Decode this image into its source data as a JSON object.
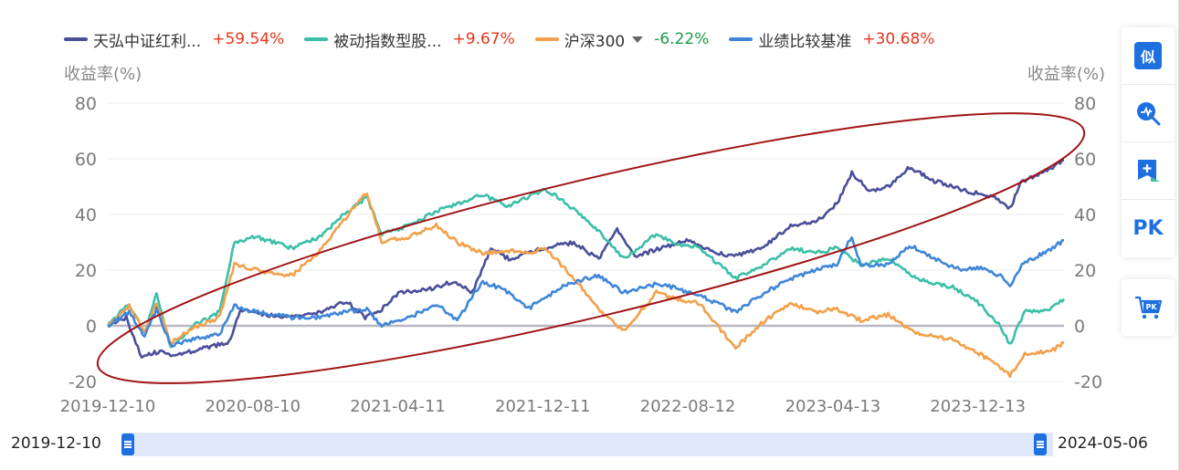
{
  "legend": [
    {
      "name": "天弘中证红利...",
      "change": "+59.54%",
      "color": "#4a4f9a",
      "dir": "up",
      "dropdown": false
    },
    {
      "name": "被动指数型股...",
      "change": "+9.67%",
      "color": "#3bbfa6",
      "dir": "up",
      "dropdown": false
    },
    {
      "name": "沪深300",
      "change": "-6.22%",
      "color": "#f2a04a",
      "dir": "down",
      "dropdown": true
    },
    {
      "name": "业绩比较基准",
      "change": "+30.68%",
      "color": "#3f86d8",
      "dir": "up",
      "dropdown": false
    }
  ],
  "sidebar": {
    "similar_label": "似",
    "pk_label": "PK",
    "cart_label": "PK",
    "icons": [
      "similar-icon",
      "trend-search-icon",
      "add-compare-icon",
      "pk-icon",
      "pk-cart-icon"
    ]
  },
  "slider": {
    "start": "2019-12-10",
    "end": "2024-05-06"
  },
  "annotation": {
    "type": "ellipse",
    "color": "#a01414"
  },
  "chart_data": {
    "type": "line",
    "ylabel_left": "收益率(%)",
    "ylabel_right": "收益率(%)",
    "yticks": [
      80,
      60,
      40,
      20,
      0,
      -20
    ],
    "ylim": [
      -20,
      80
    ],
    "xlim": [
      "2019-12-10",
      "2024-05-06"
    ],
    "xticks": [
      "2019-12-10",
      "2020-08-10",
      "2021-04-11",
      "2021-12-11",
      "2022-08-12",
      "2023-04-13",
      "2023-12-13"
    ],
    "zero_line": true,
    "grid": "horizontal",
    "series": [
      {
        "name": "天弘中证红利...",
        "color": "#4a4f9a",
        "points": [
          [
            "2019-12-10",
            0
          ],
          [
            "2020-01-10",
            3
          ],
          [
            "2020-02-05",
            -11
          ],
          [
            "2020-03-10",
            -9
          ],
          [
            "2020-03-25",
            -11
          ],
          [
            "2020-05-01",
            -9
          ],
          [
            "2020-07-01",
            -6
          ],
          [
            "2020-07-20",
            6
          ],
          [
            "2020-09-01",
            4
          ],
          [
            "2020-10-15",
            3
          ],
          [
            "2020-12-01",
            5
          ],
          [
            "2021-01-15",
            9
          ],
          [
            "2021-02-15",
            3
          ],
          [
            "2021-03-15",
            6
          ],
          [
            "2021-04-15",
            12
          ],
          [
            "2021-06-01",
            13
          ],
          [
            "2021-07-15",
            16
          ],
          [
            "2021-08-15",
            12
          ],
          [
            "2021-09-15",
            28
          ],
          [
            "2021-10-15",
            24
          ],
          [
            "2021-12-15",
            28
          ],
          [
            "2022-02-01",
            30
          ],
          [
            "2022-03-15",
            24
          ],
          [
            "2022-04-15",
            35
          ],
          [
            "2022-05-15",
            25
          ],
          [
            "2022-07-01",
            28
          ],
          [
            "2022-08-10",
            31
          ],
          [
            "2022-10-01",
            26
          ],
          [
            "2022-11-01",
            25
          ],
          [
            "2022-12-15",
            28
          ],
          [
            "2023-02-01",
            36
          ],
          [
            "2023-03-15",
            37
          ],
          [
            "2023-04-20",
            44
          ],
          [
            "2023-05-15",
            55
          ],
          [
            "2023-06-15",
            48
          ],
          [
            "2023-07-15",
            50
          ],
          [
            "2023-08-20",
            57
          ],
          [
            "2023-10-01",
            52
          ],
          [
            "2023-11-15",
            49
          ],
          [
            "2024-01-10",
            46
          ],
          [
            "2024-02-05",
            42
          ],
          [
            "2024-02-25",
            52
          ],
          [
            "2024-04-01",
            55
          ],
          [
            "2024-05-06",
            59.54
          ]
        ]
      },
      {
        "name": "被动指数型股...",
        "color": "#3bbfa6",
        "points": [
          [
            "2019-12-10",
            0
          ],
          [
            "2020-01-15",
            8
          ],
          [
            "2020-02-10",
            -3
          ],
          [
            "2020-03-01",
            12
          ],
          [
            "2020-03-25",
            -8
          ],
          [
            "2020-05-01",
            0
          ],
          [
            "2020-06-15",
            5
          ],
          [
            "2020-07-10",
            30
          ],
          [
            "2020-08-15",
            32
          ],
          [
            "2020-10-15",
            28
          ],
          [
            "2020-12-01",
            32
          ],
          [
            "2021-01-10",
            40
          ],
          [
            "2021-02-18",
            46
          ],
          [
            "2021-03-15",
            33
          ],
          [
            "2021-05-01",
            36
          ],
          [
            "2021-06-15",
            41
          ],
          [
            "2021-07-20",
            44
          ],
          [
            "2021-09-01",
            47
          ],
          [
            "2021-10-15",
            43
          ],
          [
            "2021-11-15",
            46
          ],
          [
            "2021-12-15",
            49
          ],
          [
            "2022-01-20",
            44
          ],
          [
            "2022-03-15",
            34
          ],
          [
            "2022-04-26",
            24
          ],
          [
            "2022-06-20",
            33
          ],
          [
            "2022-07-15",
            30
          ],
          [
            "2022-09-01",
            28
          ],
          [
            "2022-10-31",
            17
          ],
          [
            "2022-12-20",
            22
          ],
          [
            "2023-02-01",
            28
          ],
          [
            "2023-03-15",
            26
          ],
          [
            "2023-04-20",
            28
          ],
          [
            "2023-05-30",
            22
          ],
          [
            "2023-07-15",
            24
          ],
          [
            "2023-08-25",
            18
          ],
          [
            "2023-10-01",
            15
          ],
          [
            "2023-11-01",
            14
          ],
          [
            "2023-12-15",
            8
          ],
          [
            "2024-01-20",
            0
          ],
          [
            "2024-02-05",
            -7
          ],
          [
            "2024-03-01",
            5
          ],
          [
            "2024-04-15",
            6
          ],
          [
            "2024-05-06",
            9.67
          ]
        ]
      },
      {
        "name": "沪深300",
        "color": "#f2a04a",
        "points": [
          [
            "2019-12-10",
            0
          ],
          [
            "2020-01-15",
            7
          ],
          [
            "2020-02-10",
            -2
          ],
          [
            "2020-03-01",
            8
          ],
          [
            "2020-03-25",
            -6
          ],
          [
            "2020-05-01",
            -1
          ],
          [
            "2020-06-15",
            3
          ],
          [
            "2020-07-10",
            22
          ],
          [
            "2020-08-15",
            20
          ],
          [
            "2020-10-15",
            18
          ],
          [
            "2020-12-01",
            27
          ],
          [
            "2021-01-10",
            38
          ],
          [
            "2021-02-18",
            48
          ],
          [
            "2021-03-15",
            30
          ],
          [
            "2021-05-01",
            32
          ],
          [
            "2021-06-15",
            36
          ],
          [
            "2021-07-20",
            30
          ],
          [
            "2021-09-01",
            26
          ],
          [
            "2021-10-15",
            27
          ],
          [
            "2021-11-15",
            26
          ],
          [
            "2021-12-15",
            28
          ],
          [
            "2022-01-20",
            20
          ],
          [
            "2022-03-15",
            6
          ],
          [
            "2022-04-26",
            -2
          ],
          [
            "2022-06-20",
            12
          ],
          [
            "2022-07-15",
            10
          ],
          [
            "2022-09-01",
            8
          ],
          [
            "2022-10-31",
            -8
          ],
          [
            "2022-12-20",
            2
          ],
          [
            "2023-02-01",
            8
          ],
          [
            "2023-03-15",
            5
          ],
          [
            "2023-04-20",
            6
          ],
          [
            "2023-05-30",
            2
          ],
          [
            "2023-07-15",
            4
          ],
          [
            "2023-08-25",
            -2
          ],
          [
            "2023-10-01",
            -4
          ],
          [
            "2023-11-01",
            -5
          ],
          [
            "2023-12-15",
            -10
          ],
          [
            "2024-01-20",
            -15
          ],
          [
            "2024-02-05",
            -18
          ],
          [
            "2024-03-01",
            -10
          ],
          [
            "2024-04-15",
            -9
          ],
          [
            "2024-05-06",
            -6.22
          ]
        ]
      },
      {
        "name": "业绩比较基准",
        "color": "#3f86d8",
        "points": [
          [
            "2019-12-10",
            0
          ],
          [
            "2020-01-15",
            5
          ],
          [
            "2020-02-10",
            -4
          ],
          [
            "2020-03-01",
            6
          ],
          [
            "2020-03-25",
            -7
          ],
          [
            "2020-05-01",
            -5
          ],
          [
            "2020-06-15",
            -3
          ],
          [
            "2020-07-10",
            7
          ],
          [
            "2020-08-15",
            5
          ],
          [
            "2020-10-15",
            3
          ],
          [
            "2020-12-01",
            3
          ],
          [
            "2021-01-10",
            5
          ],
          [
            "2021-02-18",
            6
          ],
          [
            "2021-03-15",
            0
          ],
          [
            "2021-05-01",
            3
          ],
          [
            "2021-06-15",
            8
          ],
          [
            "2021-07-20",
            2
          ],
          [
            "2021-09-01",
            16
          ],
          [
            "2021-10-15",
            12
          ],
          [
            "2021-11-15",
            6
          ],
          [
            "2021-12-15",
            10
          ],
          [
            "2022-01-20",
            15
          ],
          [
            "2022-03-15",
            18
          ],
          [
            "2022-04-26",
            12
          ],
          [
            "2022-06-20",
            15
          ],
          [
            "2022-07-15",
            14
          ],
          [
            "2022-09-01",
            11
          ],
          [
            "2022-10-31",
            5
          ],
          [
            "2022-12-20",
            12
          ],
          [
            "2023-02-01",
            17
          ],
          [
            "2023-03-15",
            20
          ],
          [
            "2023-04-20",
            22
          ],
          [
            "2023-05-15",
            32
          ],
          [
            "2023-05-30",
            22
          ],
          [
            "2023-07-15",
            22
          ],
          [
            "2023-08-20",
            29
          ],
          [
            "2023-10-01",
            24
          ],
          [
            "2023-11-15",
            20
          ],
          [
            "2023-12-15",
            21
          ],
          [
            "2024-01-20",
            18
          ],
          [
            "2024-02-05",
            14
          ],
          [
            "2024-02-25",
            22
          ],
          [
            "2024-04-01",
            26
          ],
          [
            "2024-05-06",
            30.68
          ]
        ]
      }
    ]
  }
}
